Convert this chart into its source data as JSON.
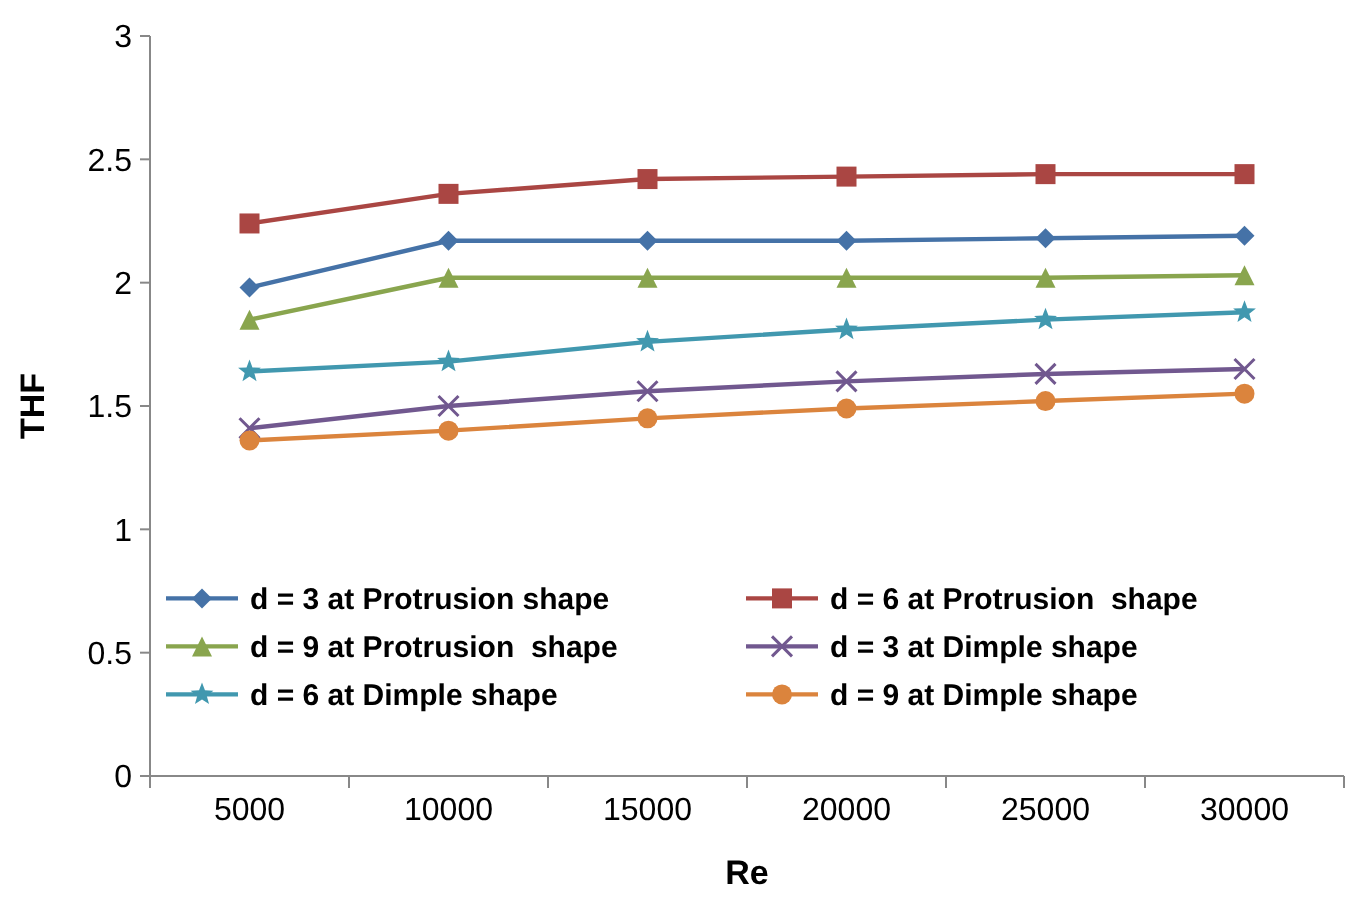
{
  "chart_data": {
    "type": "line",
    "xlabel": "Re",
    "ylabel": "THF",
    "categories": [
      "5000",
      "10000",
      "15000",
      "20000",
      "25000",
      "30000"
    ],
    "ylim": [
      0,
      3
    ],
    "yticks": [
      0,
      0.5,
      1,
      1.5,
      2,
      2.5,
      3
    ],
    "grid": false,
    "legend": "bottom",
    "series": [
      {
        "name": "d = 3 at Protrusion shape",
        "color": "#4572a7",
        "marker": "diamond",
        "values": [
          1.98,
          2.17,
          2.17,
          2.17,
          2.18,
          2.19
        ]
      },
      {
        "name": "d = 6 at Protrusion  shape",
        "color": "#aa4643",
        "marker": "square",
        "values": [
          2.24,
          2.36,
          2.42,
          2.43,
          2.44,
          2.44
        ]
      },
      {
        "name": "d = 9 at Protrusion  shape",
        "color": "#89a54e",
        "marker": "triangle",
        "values": [
          1.85,
          2.02,
          2.02,
          2.02,
          2.02,
          2.03
        ]
      },
      {
        "name": "d = 3 at Dimple shape",
        "color": "#71588f",
        "marker": "cross",
        "values": [
          1.41,
          1.5,
          1.56,
          1.6,
          1.63,
          1.65
        ]
      },
      {
        "name": "d = 6 at Dimple shape",
        "color": "#4198af",
        "marker": "star",
        "values": [
          1.64,
          1.68,
          1.76,
          1.81,
          1.85,
          1.88
        ]
      },
      {
        "name": "d = 9 at Dimple shape",
        "color": "#db843d",
        "marker": "circle",
        "values": [
          1.36,
          1.4,
          1.45,
          1.49,
          1.52,
          1.55
        ]
      }
    ]
  }
}
